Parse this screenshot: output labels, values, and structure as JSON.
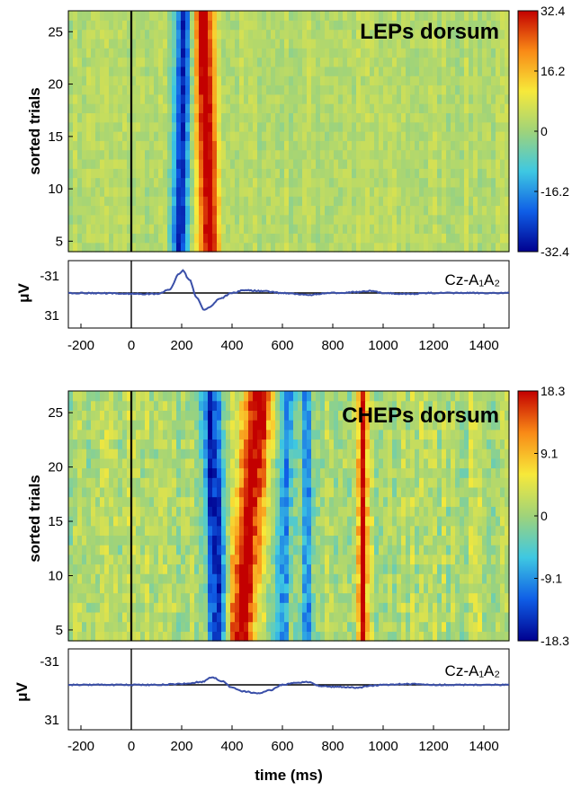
{
  "chart_data": [
    {
      "type": "heatmap",
      "panel": "top",
      "annotation": "LEPs dorsum",
      "ylabel": "sorted trials",
      "yticks": [
        5,
        10,
        15,
        20,
        25
      ],
      "ylim": [
        4,
        27
      ],
      "xlim": [
        -250,
        1500
      ],
      "colorbar": {
        "min": -32.4,
        "max": 32.4,
        "ticks": [
          "32.4",
          "16.2",
          "0",
          "-16.2",
          "-32.4"
        ]
      },
      "bands": [
        {
          "center_ms": 200,
          "width_ms": 32,
          "amplitude": -1,
          "drift_ms": 8
        },
        {
          "center_ms": 300,
          "width_ms": 40,
          "amplitude": 1,
          "drift_ms": -12
        }
      ],
      "trace": {
        "label": "Cz-A₁A₂",
        "ylabel": "μV",
        "yticks": [
          "-31",
          "31"
        ],
        "points": [
          [
            -250,
            0
          ],
          [
            100,
            1
          ],
          [
            150,
            -3
          ],
          [
            190,
            -20
          ],
          [
            205,
            -24
          ],
          [
            230,
            -14
          ],
          [
            260,
            5
          ],
          [
            290,
            18
          ],
          [
            310,
            15
          ],
          [
            350,
            6
          ],
          [
            400,
            0
          ],
          [
            450,
            -3
          ],
          [
            520,
            -2
          ],
          [
            600,
            0
          ],
          [
            700,
            2
          ],
          [
            800,
            0
          ],
          [
            900,
            -1
          ],
          [
            950,
            -2
          ],
          [
            1000,
            0
          ],
          [
            1100,
            1
          ],
          [
            1200,
            0
          ],
          [
            1500,
            0
          ]
        ]
      }
    },
    {
      "type": "heatmap",
      "panel": "bottom",
      "annotation": "CHEPs dorsum",
      "ylabel": "sorted trials",
      "xlabel": "time (ms)",
      "yticks": [
        5,
        10,
        15,
        20,
        25
      ],
      "ylim": [
        4,
        27
      ],
      "xlim": [
        -250,
        1500
      ],
      "colorbar": {
        "min": -18.3,
        "max": 18.3,
        "ticks": [
          "18.3",
          "9.1",
          "0",
          "-9.1",
          "-18.3"
        ]
      },
      "bands": [
        {
          "center_ms": 330,
          "width_ms": 40,
          "amplitude": -1,
          "drift_ms": -15
        },
        {
          "center_ms": 470,
          "width_ms": 55,
          "amplitude": 1,
          "drift_ms": 40
        },
        {
          "center_ms": 610,
          "width_ms": 30,
          "amplitude": -0.7,
          "drift_ms": 10
        },
        {
          "center_ms": 700,
          "width_ms": 25,
          "amplitude": -0.6,
          "drift_ms": 0
        },
        {
          "center_ms": 920,
          "width_ms": 22,
          "amplitude": 0.9,
          "drift_ms": 0
        }
      ],
      "trace": {
        "label": "Cz-A₁A₂",
        "ylabel": "μV",
        "yticks": [
          "-31",
          "31"
        ],
        "points": [
          [
            -250,
            0
          ],
          [
            100,
            0
          ],
          [
            200,
            -1
          ],
          [
            280,
            -3
          ],
          [
            320,
            -8
          ],
          [
            360,
            -4
          ],
          [
            400,
            3
          ],
          [
            450,
            7
          ],
          [
            500,
            9
          ],
          [
            550,
            6
          ],
          [
            600,
            0
          ],
          [
            650,
            -2
          ],
          [
            700,
            -3
          ],
          [
            750,
            1
          ],
          [
            800,
            2
          ],
          [
            900,
            3
          ],
          [
            950,
            1
          ],
          [
            1000,
            0
          ],
          [
            1100,
            -1
          ],
          [
            1200,
            0
          ],
          [
            1300,
            0
          ],
          [
            1500,
            0
          ]
        ]
      }
    }
  ],
  "xticks": [
    -200,
    0,
    200,
    400,
    600,
    800,
    1000,
    1200,
    1400
  ],
  "colors": {
    "trace": "#3a4fa8",
    "axis": "#000000",
    "colormap": [
      "#00008f",
      "#0f5ee6",
      "#3ec8e2",
      "#9fd37a",
      "#f7e93a",
      "#f98a16",
      "#c30000"
    ]
  }
}
